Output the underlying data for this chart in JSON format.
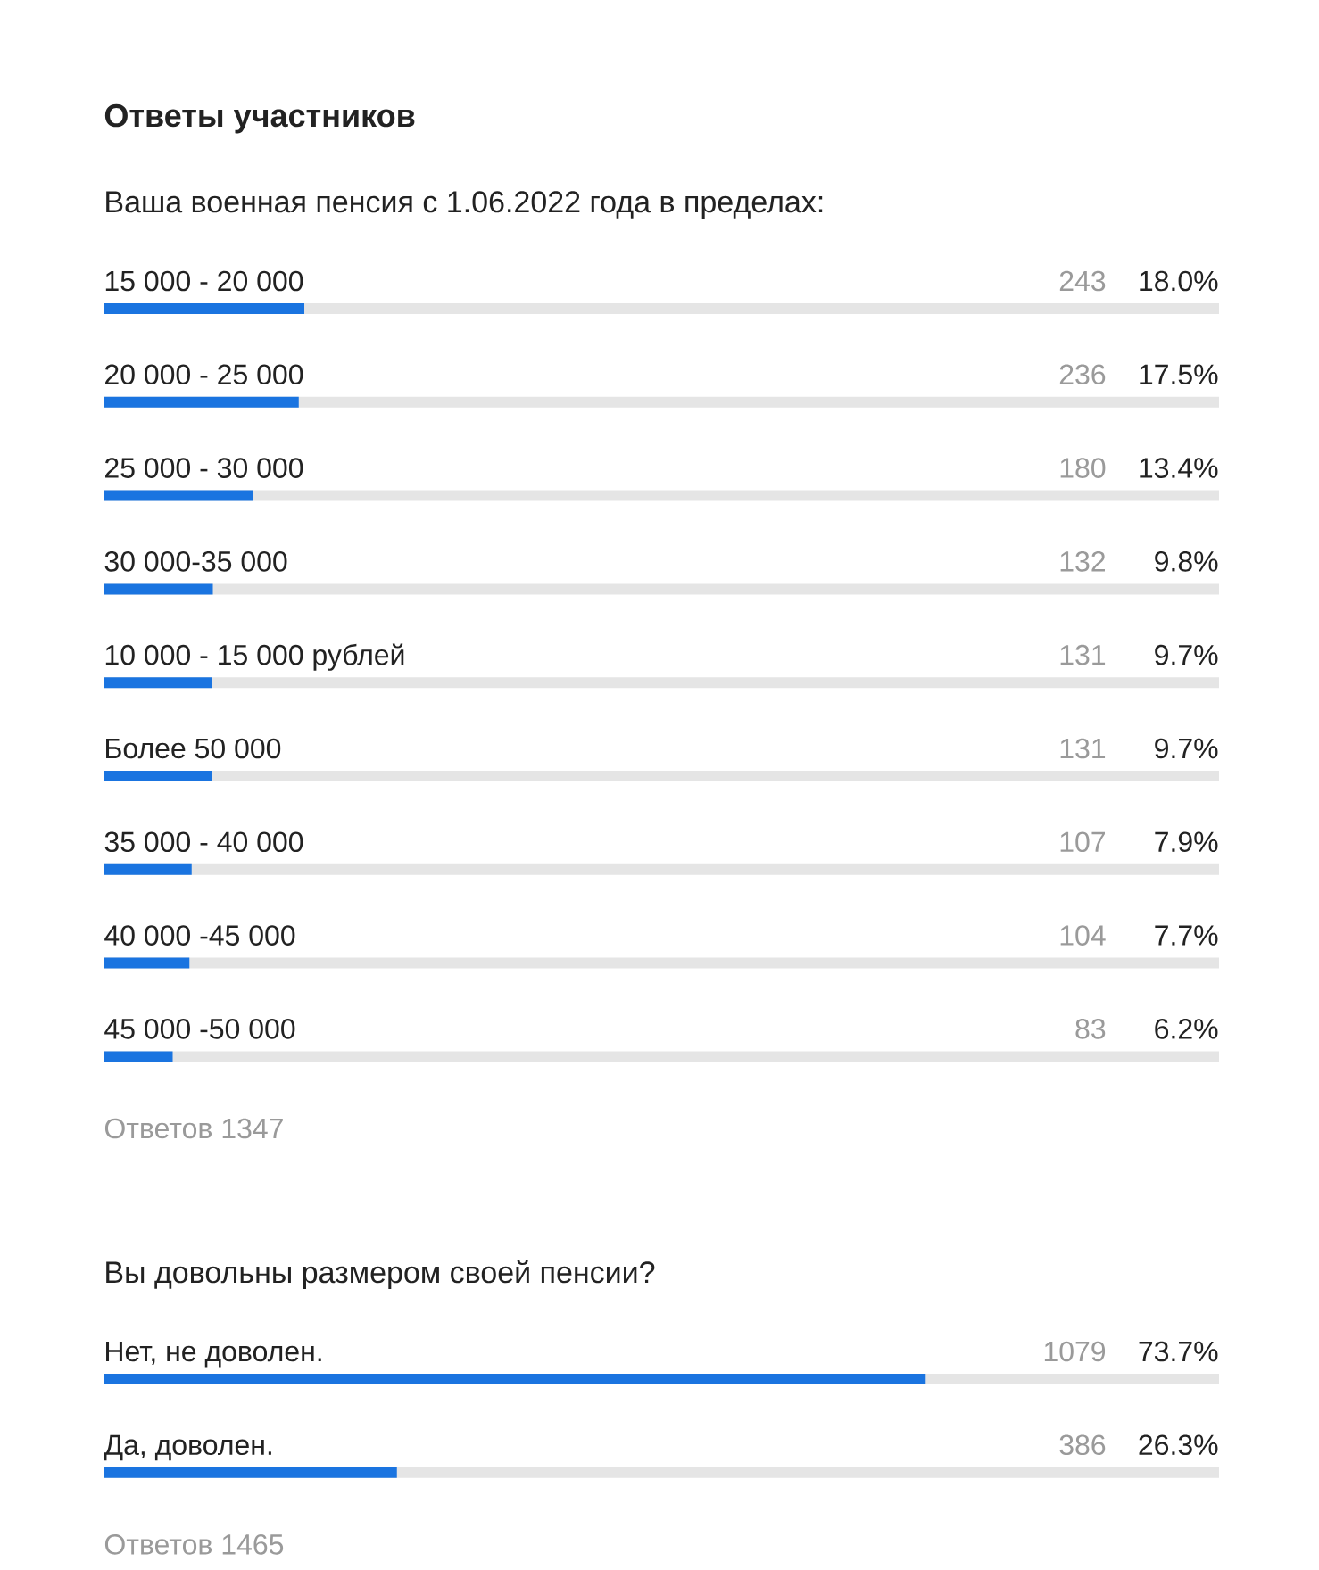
{
  "chart_data": [
    {
      "type": "bar",
      "orientation": "horizontal",
      "title": "Ответы участников",
      "subtitle": "Ваша военная пенсия с 1.06.2022 года в пределах:",
      "categories": [
        "15 000 - 20 000",
        "20 000 - 25 000",
        "25 000 - 30 000",
        "30 000-35 000",
        "10 000 - 15 000 рублей",
        "Более 50 000",
        "35 000 - 40 000",
        "40 000 -45 000",
        "45 000 -50 000"
      ],
      "values": [
        18.0,
        17.5,
        13.4,
        9.8,
        9.7,
        9.7,
        7.9,
        7.7,
        6.2
      ],
      "color": "#1a74e0",
      "value_labels": [
        "18.0%",
        "17.5%",
        "13.4%",
        "9.8%",
        "9.7%",
        "9.7%",
        "7.9%",
        "7.7%",
        "6.2%"
      ],
      "xlim": [
        0,
        100
      ],
      "tick_labels": "y",
      "annotations": [
        "243",
        "236",
        "180",
        "132",
        "131",
        "131",
        "107",
        "104",
        "83",
        "Ответов 1347"
      ]
    },
    {
      "type": "bar",
      "orientation": "horizontal",
      "subtitle": "Вы довольны размером своей пенсии?",
      "categories": [
        "Нет, не доволен.",
        "Да, доволен."
      ],
      "values": [
        73.7,
        26.3
      ],
      "color": "#1a74e0",
      "value_labels": [
        "73.7%",
        "26.3%"
      ],
      "xlim": [
        0,
        100
      ],
      "tick_labels": "y",
      "annotations": [
        "1079",
        "386",
        "Ответов 1465"
      ]
    }
  ]
}
